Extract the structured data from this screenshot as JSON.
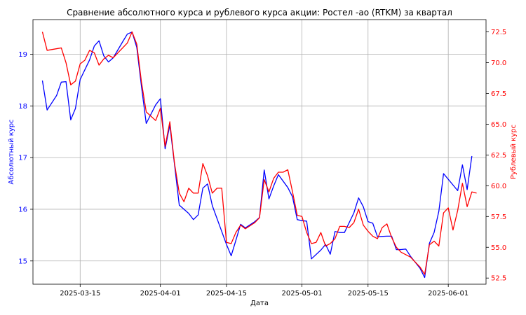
{
  "chart_data": {
    "type": "line",
    "title": "Сравнение абсолютного курса и рублевого курса акции: Ростел -ао (RTKM) за квартал",
    "xlabel": "Дата",
    "ylabel_left": "Абсолютный курс",
    "ylabel_right": "Рублевый курс",
    "x_ticks": [
      "2025-03-15",
      "2025-04-01",
      "2025-04-15",
      "2025-05-01",
      "2025-05-15",
      "2025-06-01"
    ],
    "y_left_ticks": [
      "15",
      "16",
      "17",
      "18",
      "19"
    ],
    "y_right_ticks": [
      "52.5",
      "55.0",
      "57.5",
      "60.0",
      "62.5",
      "65.0",
      "67.5",
      "70.0",
      "72.5"
    ],
    "ylim_left": [
      14.55,
      19.67
    ],
    "ylim_right": [
      52.0,
      73.5
    ],
    "xlim": [
      "2025-03-05",
      "2025-06-09"
    ],
    "grid": true,
    "series": [
      {
        "axis": "left",
        "color": "#0000ff",
        "points": [
          [
            "2025-03-07",
            18.49
          ],
          [
            "2025-03-08",
            17.92
          ],
          [
            "2025-03-10",
            18.2
          ],
          [
            "2025-03-11",
            18.46
          ],
          [
            "2025-03-12",
            18.47
          ],
          [
            "2025-03-13",
            17.73
          ],
          [
            "2025-03-14",
            17.95
          ],
          [
            "2025-03-15",
            18.51
          ],
          [
            "2025-03-17",
            18.89
          ],
          [
            "2025-03-18",
            19.16
          ],
          [
            "2025-03-19",
            19.26
          ],
          [
            "2025-03-20",
            18.97
          ],
          [
            "2025-03-21",
            18.85
          ],
          [
            "2025-03-22",
            18.93
          ],
          [
            "2025-03-24",
            19.24
          ],
          [
            "2025-03-25",
            19.39
          ],
          [
            "2025-03-26",
            19.43
          ],
          [
            "2025-03-27",
            19.13
          ],
          [
            "2025-03-28",
            18.37
          ],
          [
            "2025-03-29",
            17.66
          ],
          [
            "2025-03-31",
            18.02
          ],
          [
            "2025-04-01",
            18.14
          ],
          [
            "2025-04-02",
            17.17
          ],
          [
            "2025-04-03",
            17.63
          ],
          [
            "2025-04-04",
            16.86
          ],
          [
            "2025-04-05",
            16.08
          ],
          [
            "2025-04-07",
            15.92
          ],
          [
            "2025-04-08",
            15.8
          ],
          [
            "2025-04-09",
            15.89
          ],
          [
            "2025-04-10",
            16.41
          ],
          [
            "2025-04-11",
            16.49
          ],
          [
            "2025-04-12",
            16.07
          ],
          [
            "2025-04-14",
            15.57
          ],
          [
            "2025-04-15",
            15.32
          ],
          [
            "2025-04-16",
            15.1
          ],
          [
            "2025-04-17",
            15.4
          ],
          [
            "2025-04-18",
            15.71
          ],
          [
            "2025-04-19",
            15.64
          ],
          [
            "2025-04-21",
            15.76
          ],
          [
            "2025-04-22",
            15.84
          ],
          [
            "2025-04-23",
            16.76
          ],
          [
            "2025-04-24",
            16.2
          ],
          [
            "2025-04-25",
            16.45
          ],
          [
            "2025-04-26",
            16.67
          ],
          [
            "2025-04-28",
            16.42
          ],
          [
            "2025-04-29",
            16.24
          ],
          [
            "2025-04-30",
            15.8
          ],
          [
            "2025-05-01",
            15.78
          ],
          [
            "2025-05-02",
            15.77
          ],
          [
            "2025-05-03",
            15.04
          ],
          [
            "2025-05-05",
            15.21
          ],
          [
            "2025-05-06",
            15.32
          ],
          [
            "2025-05-07",
            15.13
          ],
          [
            "2025-05-08",
            15.57
          ],
          [
            "2025-05-09",
            15.55
          ],
          [
            "2025-05-10",
            15.55
          ],
          [
            "2025-05-12",
            15.93
          ],
          [
            "2025-05-13",
            16.22
          ],
          [
            "2025-05-14",
            16.05
          ],
          [
            "2025-05-15",
            15.76
          ],
          [
            "2025-05-16",
            15.73
          ],
          [
            "2025-05-17",
            15.47
          ],
          [
            "2025-05-19",
            15.48
          ],
          [
            "2025-05-20",
            15.48
          ],
          [
            "2025-05-21",
            15.22
          ],
          [
            "2025-05-22",
            15.22
          ],
          [
            "2025-05-23",
            15.23
          ],
          [
            "2025-05-24",
            15.09
          ],
          [
            "2025-05-26",
            14.86
          ],
          [
            "2025-05-27",
            14.68
          ],
          [
            "2025-05-28",
            15.34
          ],
          [
            "2025-05-29",
            15.55
          ],
          [
            "2025-05-30",
            15.96
          ],
          [
            "2025-05-31",
            16.69
          ],
          [
            "2025-06-03",
            16.36
          ],
          [
            "2025-06-04",
            16.86
          ],
          [
            "2025-06-05",
            16.38
          ],
          [
            "2025-06-06",
            17.03
          ]
        ]
      },
      {
        "axis": "right",
        "color": "#ff0000",
        "points": [
          [
            "2025-03-07",
            72.5
          ],
          [
            "2025-03-08",
            71.0
          ],
          [
            "2025-03-11",
            71.2
          ],
          [
            "2025-03-12",
            70.0
          ],
          [
            "2025-03-13",
            68.2
          ],
          [
            "2025-03-14",
            68.5
          ],
          [
            "2025-03-15",
            69.9
          ],
          [
            "2025-03-16",
            70.2
          ],
          [
            "2025-03-17",
            71.0
          ],
          [
            "2025-03-18",
            70.8
          ],
          [
            "2025-03-19",
            69.8
          ],
          [
            "2025-03-20",
            70.3
          ],
          [
            "2025-03-21",
            70.6
          ],
          [
            "2025-03-22",
            70.4
          ],
          [
            "2025-03-24",
            71.2
          ],
          [
            "2025-03-25",
            71.6
          ],
          [
            "2025-03-26",
            72.5
          ],
          [
            "2025-03-27",
            71.5
          ],
          [
            "2025-03-28",
            68.4
          ],
          [
            "2025-03-29",
            66.0
          ],
          [
            "2025-03-31",
            65.3
          ],
          [
            "2025-04-01",
            66.3
          ],
          [
            "2025-04-02",
            63.2
          ],
          [
            "2025-04-03",
            65.2
          ],
          [
            "2025-04-04",
            61.8
          ],
          [
            "2025-04-05",
            59.4
          ],
          [
            "2025-04-06",
            58.7
          ],
          [
            "2025-04-07",
            59.8
          ],
          [
            "2025-04-08",
            59.4
          ],
          [
            "2025-04-09",
            59.4
          ],
          [
            "2025-04-10",
            61.8
          ],
          [
            "2025-04-11",
            60.8
          ],
          [
            "2025-04-12",
            59.4
          ],
          [
            "2025-04-13",
            59.8
          ],
          [
            "2025-04-14",
            59.8
          ],
          [
            "2025-04-15",
            55.4
          ],
          [
            "2025-04-16",
            55.3
          ],
          [
            "2025-04-17",
            56.2
          ],
          [
            "2025-04-18",
            56.8
          ],
          [
            "2025-04-19",
            56.5
          ],
          [
            "2025-04-21",
            57.0
          ],
          [
            "2025-04-22",
            57.4
          ],
          [
            "2025-04-23",
            60.5
          ],
          [
            "2025-04-24",
            59.5
          ],
          [
            "2025-04-25",
            60.6
          ],
          [
            "2025-04-26",
            61.1
          ],
          [
            "2025-04-27",
            61.1
          ],
          [
            "2025-04-28",
            61.3
          ],
          [
            "2025-04-29",
            59.5
          ],
          [
            "2025-04-30",
            57.6
          ],
          [
            "2025-05-01",
            57.5
          ],
          [
            "2025-05-02",
            56.2
          ],
          [
            "2025-05-03",
            55.3
          ],
          [
            "2025-05-04",
            55.4
          ],
          [
            "2025-05-05",
            56.2
          ],
          [
            "2025-05-06",
            55.1
          ],
          [
            "2025-05-07",
            55.3
          ],
          [
            "2025-05-08",
            55.7
          ],
          [
            "2025-05-09",
            56.7
          ],
          [
            "2025-05-10",
            56.7
          ],
          [
            "2025-05-11",
            56.6
          ],
          [
            "2025-05-12",
            57.0
          ],
          [
            "2025-05-13",
            58.1
          ],
          [
            "2025-05-14",
            56.8
          ],
          [
            "2025-05-15",
            56.3
          ],
          [
            "2025-05-16",
            55.9
          ],
          [
            "2025-05-17",
            55.7
          ],
          [
            "2025-05-18",
            56.6
          ],
          [
            "2025-05-19",
            56.9
          ],
          [
            "2025-05-20",
            55.8
          ],
          [
            "2025-05-21",
            55.0
          ],
          [
            "2025-05-22",
            54.6
          ],
          [
            "2025-05-23",
            54.4
          ],
          [
            "2025-05-24",
            54.2
          ],
          [
            "2025-05-26",
            53.4
          ],
          [
            "2025-05-27",
            52.8
          ],
          [
            "2025-05-28",
            55.2
          ],
          [
            "2025-05-29",
            55.5
          ],
          [
            "2025-05-30",
            55.1
          ],
          [
            "2025-05-31",
            57.8
          ],
          [
            "2025-06-01",
            58.2
          ],
          [
            "2025-06-02",
            56.4
          ],
          [
            "2025-06-03",
            58.0
          ],
          [
            "2025-06-04",
            60.2
          ],
          [
            "2025-06-05",
            58.3
          ],
          [
            "2025-06-06",
            59.5
          ],
          [
            "2025-06-07",
            59.4
          ]
        ]
      }
    ]
  }
}
